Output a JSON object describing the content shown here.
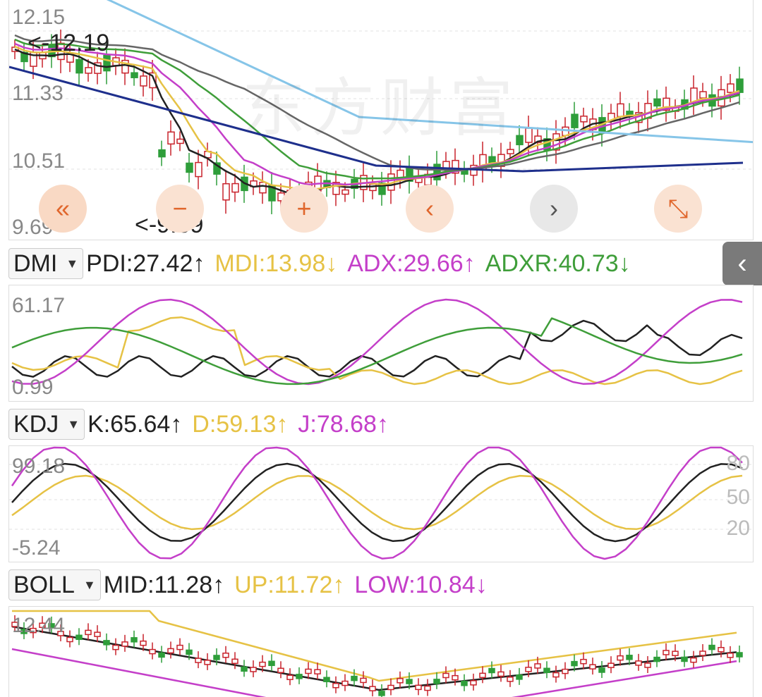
{
  "main_chart": {
    "axis_labels": [
      "12.15",
      "11.33",
      "10.51",
      "9.69"
    ],
    "high_marker": "<-12.19",
    "low_marker": "<-9.69",
    "watermark": "东方财富"
  },
  "nav_buttons": {
    "prev_label": "«",
    "next_label": "›",
    "expand_label": "⤡",
    "prev_color": "#e87a3a",
    "accent": "#f2c7a6"
  },
  "side_tab_label": "‹",
  "dmi": {
    "selector": "DMI",
    "pdi": "PDI:27.42↑",
    "mdi": "MDI:13.98↓",
    "adx": "ADX:29.66↑",
    "adxr": "ADXR:40.73↓",
    "axis_top": "61.17",
    "axis_bottom": "0.99"
  },
  "kdj": {
    "selector": "KDJ",
    "k": "K:65.64↑",
    "d": "D:59.13↑",
    "j": "J:78.68↑",
    "axis_top": "99.18",
    "axis_bottom": "-5.24",
    "right_labels": [
      "80",
      "50",
      "20"
    ]
  },
  "boll": {
    "selector": "BOLL",
    "mid": "MID:11.28↑",
    "up": "UP:11.72↑",
    "low": "LOW:10.84↓",
    "axis_top": "12.44"
  },
  "colors": {
    "up_candle": "#c8232c",
    "down_candle": "#2e9e3a",
    "black": "#222222",
    "yellow": "#e6c245",
    "magenta": "#c43fc9",
    "green": "#3f9e3a",
    "gray": "#666666",
    "navy": "#1e2f8c",
    "skyblue": "#86c5e8"
  }
}
